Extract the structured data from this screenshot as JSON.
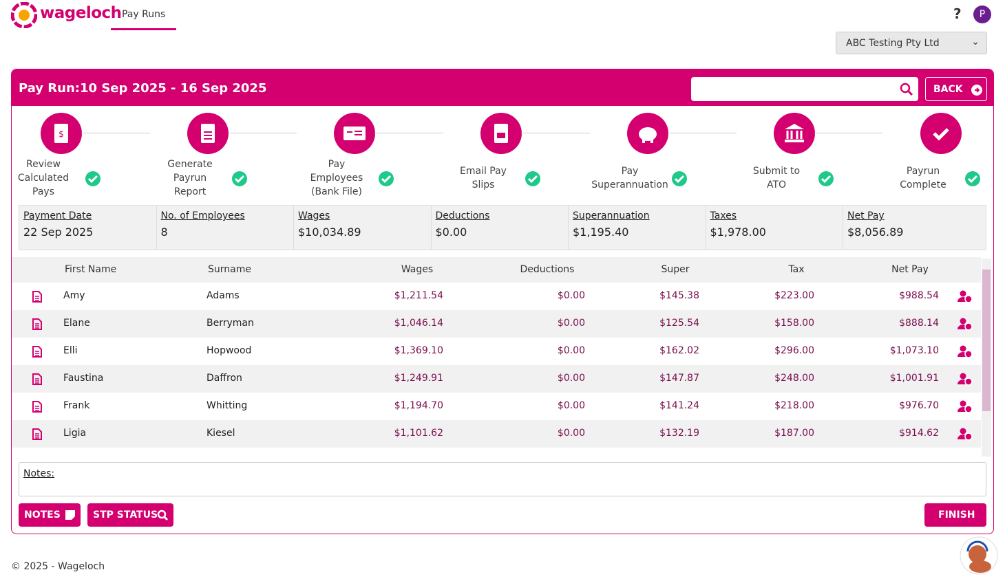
{
  "header": {
    "brand": "wageloch",
    "nav": "Pay Runs",
    "help": "?",
    "avatar": "P",
    "company": "ABC Testing Pty Ltd"
  },
  "payrun": {
    "label": "Pay Run:",
    "period": "10 Sep 2025 - 16 Sep 2025",
    "back": "BACK"
  },
  "steps": [
    {
      "lines": [
        "Review",
        "Calculated",
        "Pays"
      ]
    },
    {
      "lines": [
        "Generate",
        "Payrun",
        "Report"
      ]
    },
    {
      "lines": [
        "Pay",
        "Employees",
        "(Bank File)"
      ]
    },
    {
      "lines": [
        "Email Pay",
        "Slips"
      ]
    },
    {
      "lines": [
        "Pay",
        "Superannuation"
      ]
    },
    {
      "lines": [
        "Submit to",
        "ATO"
      ]
    },
    {
      "lines": [
        "Payrun",
        "Complete"
      ]
    }
  ],
  "summary": [
    {
      "label": "Payment Date",
      "value": "22 Sep 2025"
    },
    {
      "label": "No. of Employees",
      "value": "8"
    },
    {
      "label": "Wages",
      "value": "$10,034.89"
    },
    {
      "label": "Deductions",
      "value": "$0.00"
    },
    {
      "label": "Superannuation",
      "value": "$1,195.40"
    },
    {
      "label": "Taxes",
      "value": "$1,978.00"
    },
    {
      "label": "Net Pay",
      "value": "$8,056.89"
    }
  ],
  "table": {
    "columns": [
      "First Name",
      "Surname",
      "Wages",
      "Deductions",
      "Super",
      "Tax",
      "Net Pay"
    ],
    "rows": [
      [
        "Amy",
        "Adams",
        "$1,211.54",
        "$0.00",
        "$145.38",
        "$223.00",
        "$988.54"
      ],
      [
        "Elane",
        "Berryman",
        "$1,046.14",
        "$0.00",
        "$125.54",
        "$158.00",
        "$888.14"
      ],
      [
        "Elli",
        "Hopwood",
        "$1,369.10",
        "$0.00",
        "$162.02",
        "$296.00",
        "$1,073.10"
      ],
      [
        "Faustina",
        "Daffron",
        "$1,249.91",
        "$0.00",
        "$147.87",
        "$248.00",
        "$1,001.91"
      ],
      [
        "Frank",
        "Whitting",
        "$1,194.70",
        "$0.00",
        "$141.24",
        "$218.00",
        "$976.70"
      ],
      [
        "Ligia",
        "Kiesel",
        "$1,101.62",
        "$0.00",
        "$132.19",
        "$187.00",
        "$914.62"
      ]
    ]
  },
  "notes": {
    "label": "Notes:"
  },
  "buttons": {
    "notes": "NOTES",
    "stp": "STP STATUS",
    "finish": "FINISH"
  },
  "footer": "© 2025 - Wageloch"
}
